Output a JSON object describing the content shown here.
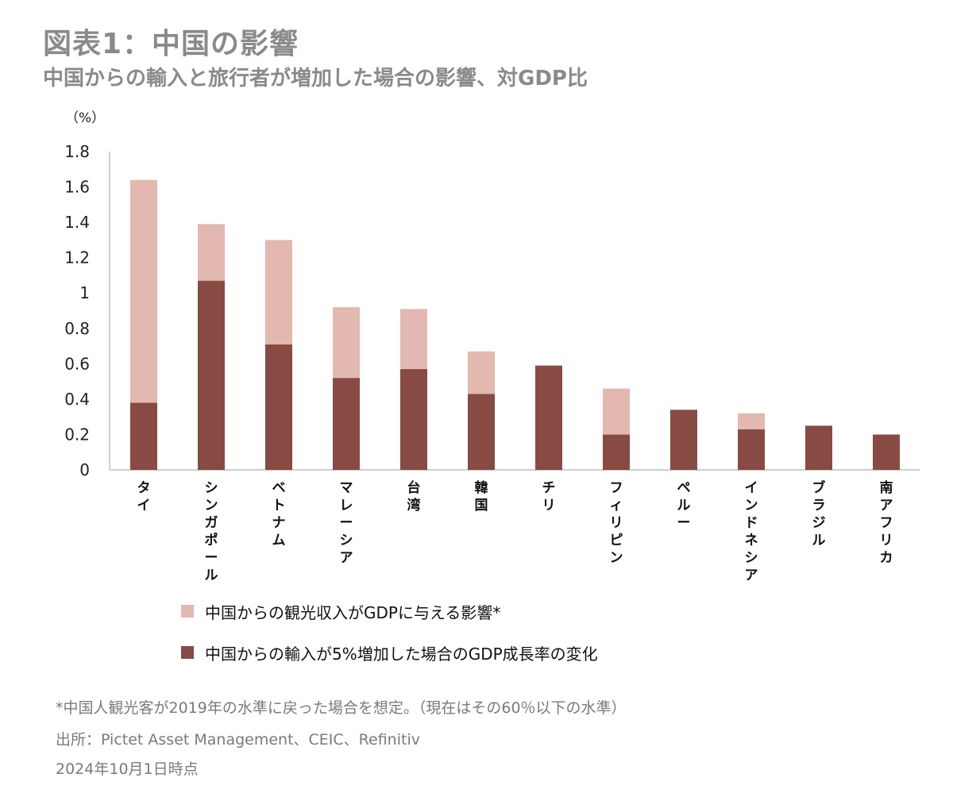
{
  "title": "図表1：中国の影響",
  "subtitle": "中国からの輸入と旅行者が増加した場合の影響、対GDP比",
  "chart_data": {
    "type": "bar",
    "stacked": true,
    "unit_label": "（%）",
    "categories": [
      "タイ",
      "シンガポール",
      "ベトナム",
      "マレーシア",
      "台湾",
      "韓国",
      "チリ",
      "フィリピン",
      "ペルー",
      "インドネシア",
      "ブラジル",
      "南アフリカ"
    ],
    "series": [
      {
        "name": "中国からの輸入が5%増加した場合のGDP成長率の変化",
        "color": "#874b43",
        "values": [
          0.38,
          1.07,
          0.71,
          0.52,
          0.57,
          0.43,
          0.59,
          0.2,
          0.34,
          0.23,
          0.25,
          0.2
        ]
      },
      {
        "name": "中国からの観光収入がGDPに与える影響*",
        "color": "#e2b8b0",
        "values": [
          1.26,
          0.32,
          0.59,
          0.4,
          0.34,
          0.24,
          0.0,
          0.26,
          0.0,
          0.09,
          0.0,
          0.0
        ]
      }
    ],
    "yticks": [
      "0",
      "0.2",
      "0.4",
      "0.6",
      "0.8",
      "1",
      "1.2",
      "1.4",
      "1.6",
      "1.8"
    ],
    "ylim": [
      0,
      1.8
    ],
    "grid": false,
    "legend_position": "bottom-left"
  },
  "legend": [
    {
      "label": "中国からの観光収入がGDPに与える影響*",
      "color": "#e2b8b0"
    },
    {
      "label": "中国からの輸入が5%増加した場合のGDP成長率の変化",
      "color": "#874b43"
    }
  ],
  "notes": {
    "footnote": "*中国人観光客が2019年の水準に戻った場合を想定。（現在はその60％以下の水準）",
    "source": "出所：Pictet Asset Management、CEIC、Refinitiv",
    "date": "2024年10月1日時点"
  }
}
